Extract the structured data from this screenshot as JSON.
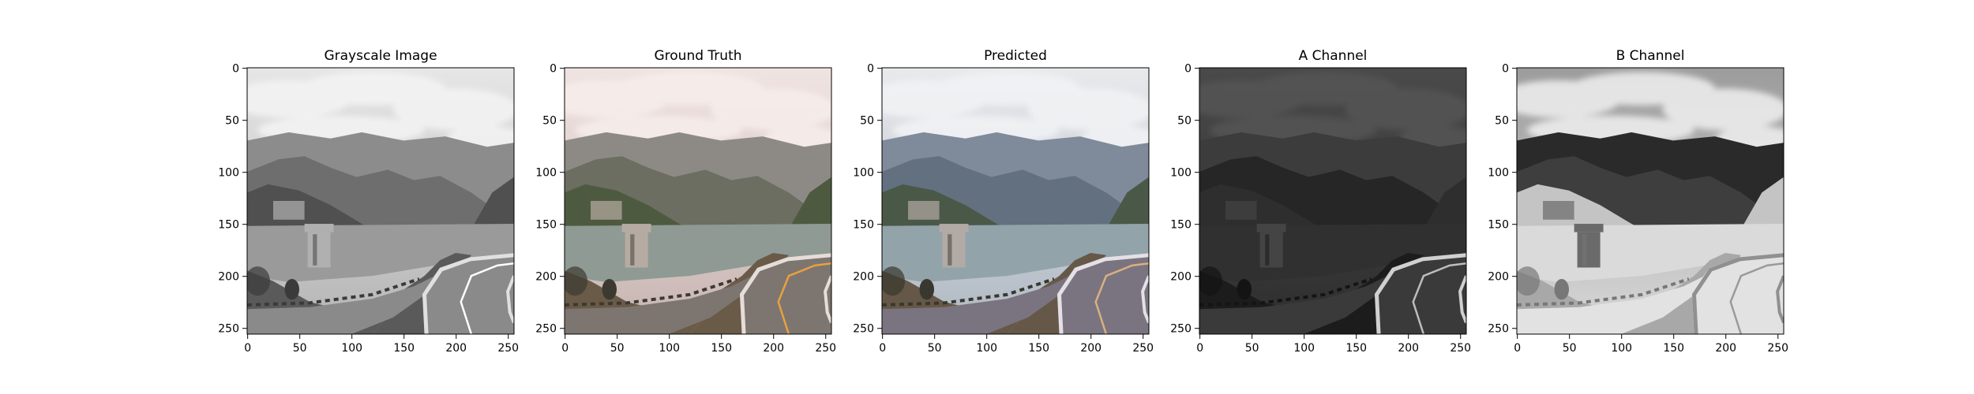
{
  "figure": {
    "panels": [
      {
        "title": "Grayscale Image",
        "kind": "gray"
      },
      {
        "title": "Ground Truth",
        "kind": "truth"
      },
      {
        "title": "Predicted",
        "kind": "pred"
      },
      {
        "title": "A Channel",
        "kind": "achan"
      },
      {
        "title": "B Channel",
        "kind": "bchan"
      }
    ],
    "x_ticks": [
      "0",
      "50",
      "100",
      "150",
      "200",
      "250"
    ],
    "y_ticks": [
      "0",
      "50",
      "100",
      "150",
      "200",
      "250"
    ]
  }
}
